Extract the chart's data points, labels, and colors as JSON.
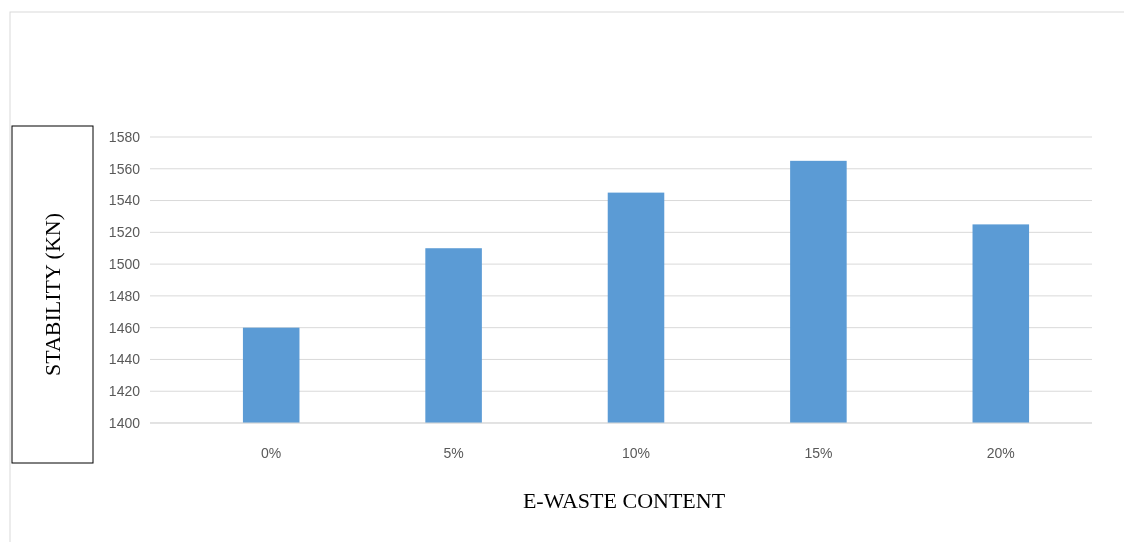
{
  "chart_data": {
    "type": "bar",
    "xlabel": "E-WASTE CONTENT",
    "ylabel": "STABILITY (KN)",
    "categories": [
      "0%",
      "5%",
      "10%",
      "15%",
      "20%"
    ],
    "values": [
      1460,
      1510,
      1545,
      1565,
      1525
    ],
    "color": "#5b9bd5",
    "ylim": [
      1400,
      1580
    ],
    "yticks": [
      1400,
      1420,
      1440,
      1460,
      1480,
      1500,
      1520,
      1540,
      1560,
      1580
    ],
    "grid": "y"
  }
}
